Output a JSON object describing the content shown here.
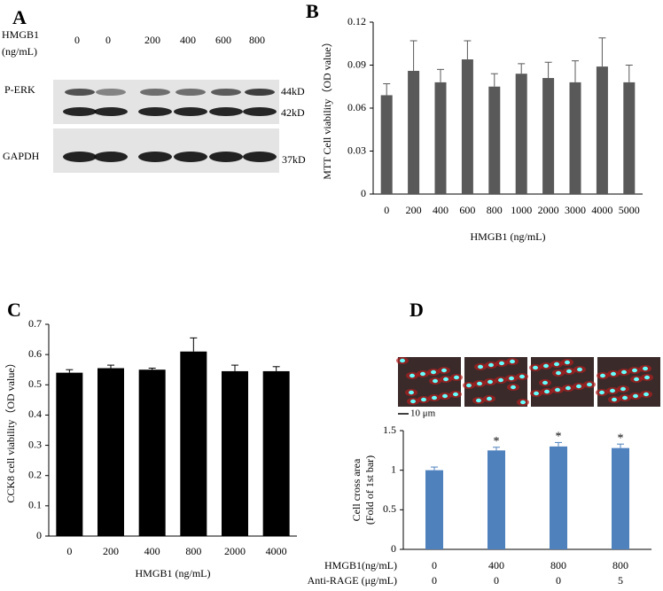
{
  "panel_labels": [
    "A",
    "B",
    "C",
    "D"
  ],
  "panel_a": {
    "treatment_label": "HMGB1",
    "treatment_unit": "(ng/mL)",
    "lanes": [
      "0",
      "0",
      "200",
      "400",
      "600",
      "800"
    ],
    "blots": [
      {
        "name": "P-ERK",
        "sizes": [
          "44kD",
          "42kD"
        ]
      },
      {
        "name": "GAPDH",
        "sizes": [
          "37kD"
        ]
      }
    ]
  },
  "chart_data": [
    {
      "type": "bar",
      "y_label": "MTT Cell viability（OD value）",
      "x_label": "HMGB1 (ng/mL)",
      "color": "#595959",
      "categories": [
        "0",
        "200",
        "400",
        "600",
        "800",
        "1000",
        "2000",
        "3000",
        "4000",
        "5000"
      ],
      "values": [
        0.069,
        0.086,
        0.078,
        0.094,
        0.075,
        0.084,
        0.081,
        0.078,
        0.089,
        0.078
      ],
      "errors": [
        0.008,
        0.021,
        0.009,
        0.013,
        0.009,
        0.007,
        0.011,
        0.015,
        0.02,
        0.012
      ],
      "ylim": [
        0,
        0.12
      ],
      "yticks": [
        0,
        0.03,
        0.06,
        0.09,
        0.12
      ]
    },
    {
      "type": "bar",
      "y_label": "CCK8 cell viability（OD value）",
      "x_label": "HMGB1 (ng/mL)",
      "color": "#000000",
      "categories": [
        "0",
        "200",
        "400",
        "800",
        "2000",
        "4000"
      ],
      "values": [
        0.54,
        0.555,
        0.55,
        0.61,
        0.545,
        0.545
      ],
      "errors": [
        0.01,
        0.01,
        0.005,
        0.045,
        0.02,
        0.015
      ],
      "ylim": [
        0,
        0.7
      ],
      "yticks": [
        0,
        0.1,
        0.2,
        0.3,
        0.4,
        0.5,
        0.6,
        0.7
      ]
    },
    {
      "type": "bar",
      "y_label": [
        "Cell cross area",
        "(Fold of 1st bar)"
      ],
      "color": "#4f81bd",
      "scale_bar": "10 μm",
      "category_rows": [
        {
          "label": "HMGB1(ng/mL)",
          "values": [
            "0",
            "400",
            "800",
            "800"
          ]
        },
        {
          "label": "Anti-RAGE (μg/mL)",
          "values": [
            "0",
            "0",
            "0",
            "5"
          ]
        }
      ],
      "values": [
        1.0,
        1.25,
        1.3,
        1.28
      ],
      "errors": [
        0.04,
        0.04,
        0.05,
        0.05
      ],
      "significance": [
        null,
        "*",
        "*",
        "*"
      ],
      "ylim": [
        0,
        1.5
      ],
      "yticks": [
        0,
        0.5,
        1,
        1.5
      ]
    }
  ]
}
